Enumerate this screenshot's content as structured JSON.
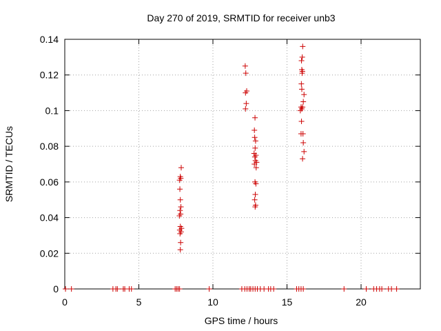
{
  "chart_data": {
    "type": "scatter",
    "title": "Day 270 of 2019, SRMTID for receiver unb3",
    "xlabel": "GPS time / hours",
    "ylabel": "SRMTID / TECUs",
    "xlim": [
      0,
      24
    ],
    "ylim": [
      0,
      0.14
    ],
    "xticks": [
      0,
      5,
      10,
      15,
      20
    ],
    "xtick_labels": [
      "0",
      "5",
      "10",
      "15",
      "20"
    ],
    "yticks": [
      0,
      0.02,
      0.04,
      0.06,
      0.08,
      0.1,
      0.12,
      0.14
    ],
    "ytick_labels": [
      "0",
      "0.02",
      "0.04",
      "0.06",
      "0.08",
      "0.1",
      "0.12",
      "0.14"
    ],
    "grid": true,
    "marker": "+",
    "series": [
      {
        "name": "SRMTID",
        "color": "#cc0000",
        "points": [
          [
            0.05,
            0
          ],
          [
            0.45,
            0
          ],
          [
            3.25,
            0
          ],
          [
            3.45,
            0
          ],
          [
            3.55,
            0
          ],
          [
            3.95,
            0
          ],
          [
            4.05,
            0
          ],
          [
            4.35,
            0
          ],
          [
            4.5,
            0
          ],
          [
            7.45,
            0
          ],
          [
            7.55,
            0
          ],
          [
            7.65,
            0
          ],
          [
            7.75,
            0
          ],
          [
            7.8,
            0.022
          ],
          [
            7.82,
            0.026
          ],
          [
            7.78,
            0.031
          ],
          [
            7.85,
            0.032
          ],
          [
            7.76,
            0.033
          ],
          [
            7.88,
            0.034
          ],
          [
            7.8,
            0.035
          ],
          [
            7.74,
            0.041
          ],
          [
            7.82,
            0.042
          ],
          [
            7.78,
            0.044
          ],
          [
            7.84,
            0.046
          ],
          [
            7.8,
            0.05
          ],
          [
            7.77,
            0.056
          ],
          [
            7.75,
            0.061
          ],
          [
            7.83,
            0.062
          ],
          [
            7.8,
            0.063
          ],
          [
            7.86,
            0.068
          ],
          [
            9.75,
            0
          ],
          [
            11.95,
            0
          ],
          [
            12.15,
            0
          ],
          [
            12.3,
            0
          ],
          [
            12.45,
            0
          ],
          [
            12.55,
            0
          ],
          [
            12.7,
            0
          ],
          [
            12.85,
            0
          ],
          [
            13.0,
            0
          ],
          [
            13.2,
            0
          ],
          [
            13.45,
            0
          ],
          [
            13.75,
            0
          ],
          [
            13.9,
            0
          ],
          [
            14.1,
            0
          ],
          [
            12.2,
            0.101
          ],
          [
            12.25,
            0.104
          ],
          [
            12.2,
            0.11
          ],
          [
            12.28,
            0.111
          ],
          [
            12.22,
            0.121
          ],
          [
            12.18,
            0.125
          ],
          [
            12.85,
            0.046
          ],
          [
            12.88,
            0.047
          ],
          [
            12.82,
            0.05
          ],
          [
            12.86,
            0.053
          ],
          [
            12.9,
            0.059
          ],
          [
            12.84,
            0.06
          ],
          [
            12.92,
            0.068
          ],
          [
            12.8,
            0.07
          ],
          [
            12.95,
            0.071
          ],
          [
            12.87,
            0.072
          ],
          [
            12.83,
            0.074
          ],
          [
            12.9,
            0.075
          ],
          [
            12.78,
            0.076
          ],
          [
            12.85,
            0.079
          ],
          [
            12.88,
            0.083
          ],
          [
            12.82,
            0.085
          ],
          [
            12.8,
            0.089
          ],
          [
            12.84,
            0.096
          ],
          [
            15.65,
            0
          ],
          [
            15.8,
            0
          ],
          [
            15.95,
            0
          ],
          [
            16.1,
            0
          ],
          [
            16.05,
            0.073
          ],
          [
            16.15,
            0.077
          ],
          [
            16.1,
            0.082
          ],
          [
            15.95,
            0.087
          ],
          [
            16.08,
            0.087
          ],
          [
            15.98,
            0.094
          ],
          [
            15.9,
            0.1
          ],
          [
            16.0,
            0.101
          ],
          [
            15.95,
            0.102
          ],
          [
            16.05,
            0.102
          ],
          [
            16.1,
            0.105
          ],
          [
            16.15,
            0.109
          ],
          [
            16.0,
            0.112
          ],
          [
            15.97,
            0.115
          ],
          [
            16.02,
            0.121
          ],
          [
            16.04,
            0.122
          ],
          [
            16.0,
            0.123
          ],
          [
            15.98,
            0.128
          ],
          [
            16.03,
            0.13
          ],
          [
            16.06,
            0.136
          ],
          [
            18.85,
            0
          ],
          [
            20.35,
            0
          ],
          [
            20.85,
            0
          ],
          [
            21.05,
            0
          ],
          [
            21.25,
            0
          ],
          [
            21.4,
            0
          ],
          [
            21.85,
            0
          ],
          [
            22.05,
            0
          ],
          [
            22.4,
            0
          ]
        ]
      }
    ]
  }
}
